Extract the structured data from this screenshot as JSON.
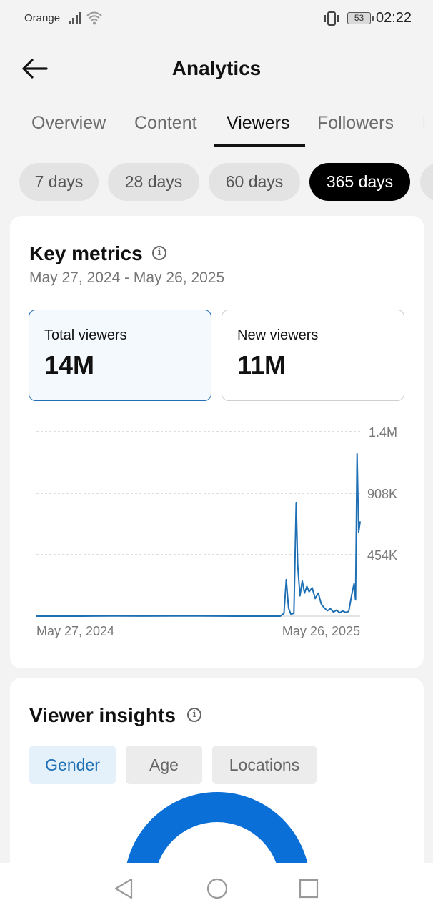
{
  "status": {
    "carrier": "Orange",
    "battery": "53",
    "time": "02:22"
  },
  "header": {
    "title": "Analytics"
  },
  "tabs": [
    {
      "label": "Overview",
      "active": false
    },
    {
      "label": "Content",
      "active": false
    },
    {
      "label": "Viewers",
      "active": true
    },
    {
      "label": "Followers",
      "active": false
    },
    {
      "label": "L",
      "active": false
    }
  ],
  "ranges": [
    {
      "label": "7 days",
      "active": false
    },
    {
      "label": "28 days",
      "active": false
    },
    {
      "label": "60 days",
      "active": false
    },
    {
      "label": "365 days",
      "active": true
    }
  ],
  "key_metrics": {
    "title": "Key metrics",
    "date_range": "May 27, 2024 - May 26, 2025",
    "metrics": [
      {
        "label": "Total viewers",
        "value": "14M",
        "active": true
      },
      {
        "label": "New viewers",
        "value": "11M",
        "active": false
      }
    ]
  },
  "chart_data": {
    "type": "line",
    "series": [
      {
        "points": [
          [
            0,
            0
          ],
          [
            60,
            0
          ],
          [
            100,
            1500
          ],
          [
            140,
            500
          ],
          [
            180,
            1800
          ],
          [
            215,
            800
          ],
          [
            260,
            0
          ],
          [
            300,
            0
          ],
          [
            320,
            0
          ],
          [
            325,
            20000
          ],
          [
            328,
            270000
          ],
          [
            331,
            60000
          ],
          [
            334,
            15000
          ],
          [
            338,
            20000
          ],
          [
            341,
            840000
          ],
          [
            343,
            380000
          ],
          [
            346,
            150000
          ],
          [
            349,
            260000
          ],
          [
            352,
            170000
          ],
          [
            355,
            220000
          ],
          [
            358,
            180000
          ],
          [
            362,
            210000
          ],
          [
            366,
            130000
          ],
          [
            370,
            170000
          ],
          [
            374,
            90000
          ],
          [
            378,
            60000
          ],
          [
            382,
            40000
          ],
          [
            386,
            55000
          ],
          [
            390,
            30000
          ],
          [
            394,
            45000
          ],
          [
            398,
            25000
          ],
          [
            402,
            38000
          ],
          [
            406,
            28000
          ],
          [
            410,
            35000
          ],
          [
            414,
            160000
          ],
          [
            417,
            240000
          ],
          [
            419,
            120000
          ],
          [
            421,
            1200000
          ],
          [
            423,
            620000
          ],
          [
            425,
            700000
          ]
        ]
      }
    ],
    "x_tick_labels": [
      "May 27, 2024",
      "May 26, 2025"
    ],
    "y_tick_labels": [
      "1.4M",
      "908K",
      "454K"
    ],
    "y_ticks": [
      1362000,
      908000,
      454000
    ],
    "ylim": [
      0,
      1362000
    ],
    "grid": true,
    "color": "#1f6fb4"
  },
  "viewer_insights": {
    "title": "Viewer insights",
    "tabs": [
      {
        "label": "Gender",
        "active": true
      },
      {
        "label": "Age",
        "active": false
      },
      {
        "label": "Locations",
        "active": false
      }
    ],
    "donut_color": "#0a6fd6"
  }
}
